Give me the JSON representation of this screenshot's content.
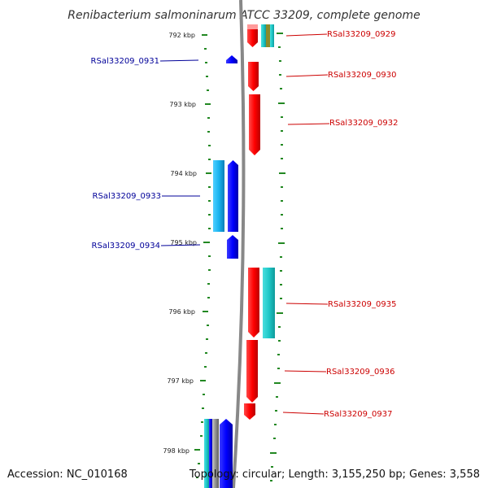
{
  "title": "Renibacterium salmoninarum ATCC 33209, complete genome",
  "accession": "Accession: NC_010168",
  "topology": "Topology: circular; Length: 3,155,250 bp; Genes: 3,558",
  "scale": {
    "unit": "kbp",
    "ticks": [
      "792 kbp",
      "793 kbp",
      "794 kbp",
      "795 kbp",
      "796 kbp",
      "797 kbp",
      "798 kbp"
    ]
  },
  "genes": {
    "forward": [
      "RSal33209_0929",
      "RSal33209_0930",
      "RSal33209_0932",
      "RSal33209_0935",
      "RSal33209_0936",
      "RSal33209_0937"
    ],
    "reverse": [
      "RSal33209_0931",
      "RSal33209_0933",
      "RSal33209_0934"
    ]
  },
  "colors": {
    "forward_cds": "#ff0000",
    "reverse_cds": "#0000ff",
    "forward_label": "#cc0000",
    "reverse_label": "#000099",
    "cyan_feature": "#1ec8c8",
    "light_blue_feature": "#1ab4f0",
    "backbone": "#888888",
    "gc_dots": "#228822"
  }
}
